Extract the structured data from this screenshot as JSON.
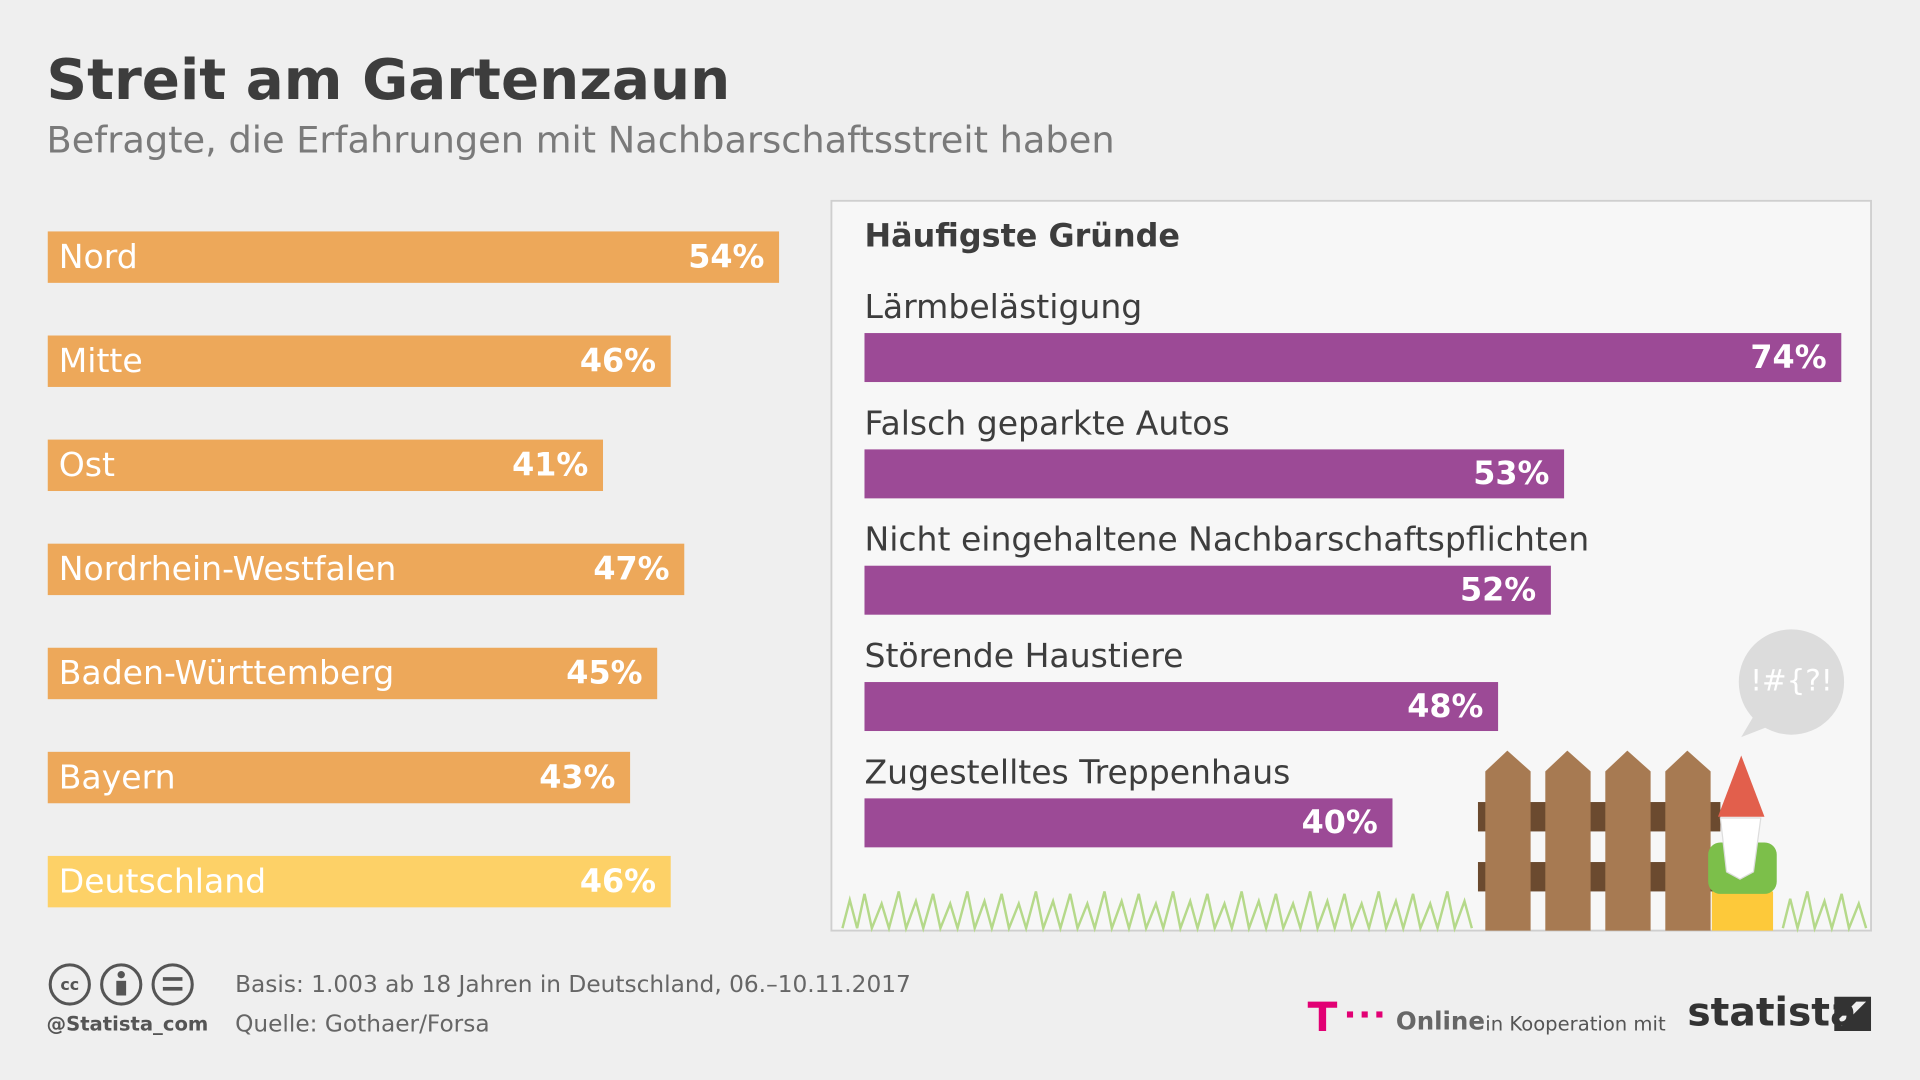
{
  "header": {
    "title": "Streit am Gartenzaun",
    "subtitle": "Befragte, die Erfahrungen mit Nachbarschaftsstreit haben"
  },
  "chart_data": [
    {
      "type": "hbar",
      "categories": [
        "Nord",
        "Mitte",
        "Ost",
        "Nordrhein-Westfalen",
        "Baden-Württemberg",
        "Bayern",
        "Deutschland"
      ],
      "values": [
        54,
        46,
        41,
        47,
        45,
        43,
        46
      ],
      "value_labels": [
        "54%",
        "46%",
        "41%",
        "47%",
        "45%",
        "43%",
        "46%"
      ],
      "colors": [
        "#eda85a",
        "#eda85a",
        "#eda85a",
        "#eda85a",
        "#eda85a",
        "#eda85a",
        "#fdd167"
      ]
    },
    {
      "type": "hbar-labeled",
      "title": "Häufigste Gründe",
      "categories": [
        "Lärmbelästigung",
        "Falsch geparkte Autos",
        "Nicht eingehaltene Nachbarschaftspflichten",
        "Störende Haustiere",
        "Zugestelltes Treppenhaus"
      ],
      "values": [
        74,
        53,
        52,
        48,
        40
      ],
      "value_labels": [
        "74%",
        "53%",
        "52%",
        "48%",
        "40%"
      ],
      "color": "#9c4a96"
    }
  ],
  "bubble": "!#{?!",
  "footer": {
    "handle": "@Statista_com",
    "basis": "Basis: 1.003 ab 18 Jahren in Deutschland, 06.–10.11.2017",
    "source": "Quelle: Gothaer/Forsa",
    "partner": "Online",
    "cooperation": "in Kooperation mit",
    "brand": "statista"
  }
}
